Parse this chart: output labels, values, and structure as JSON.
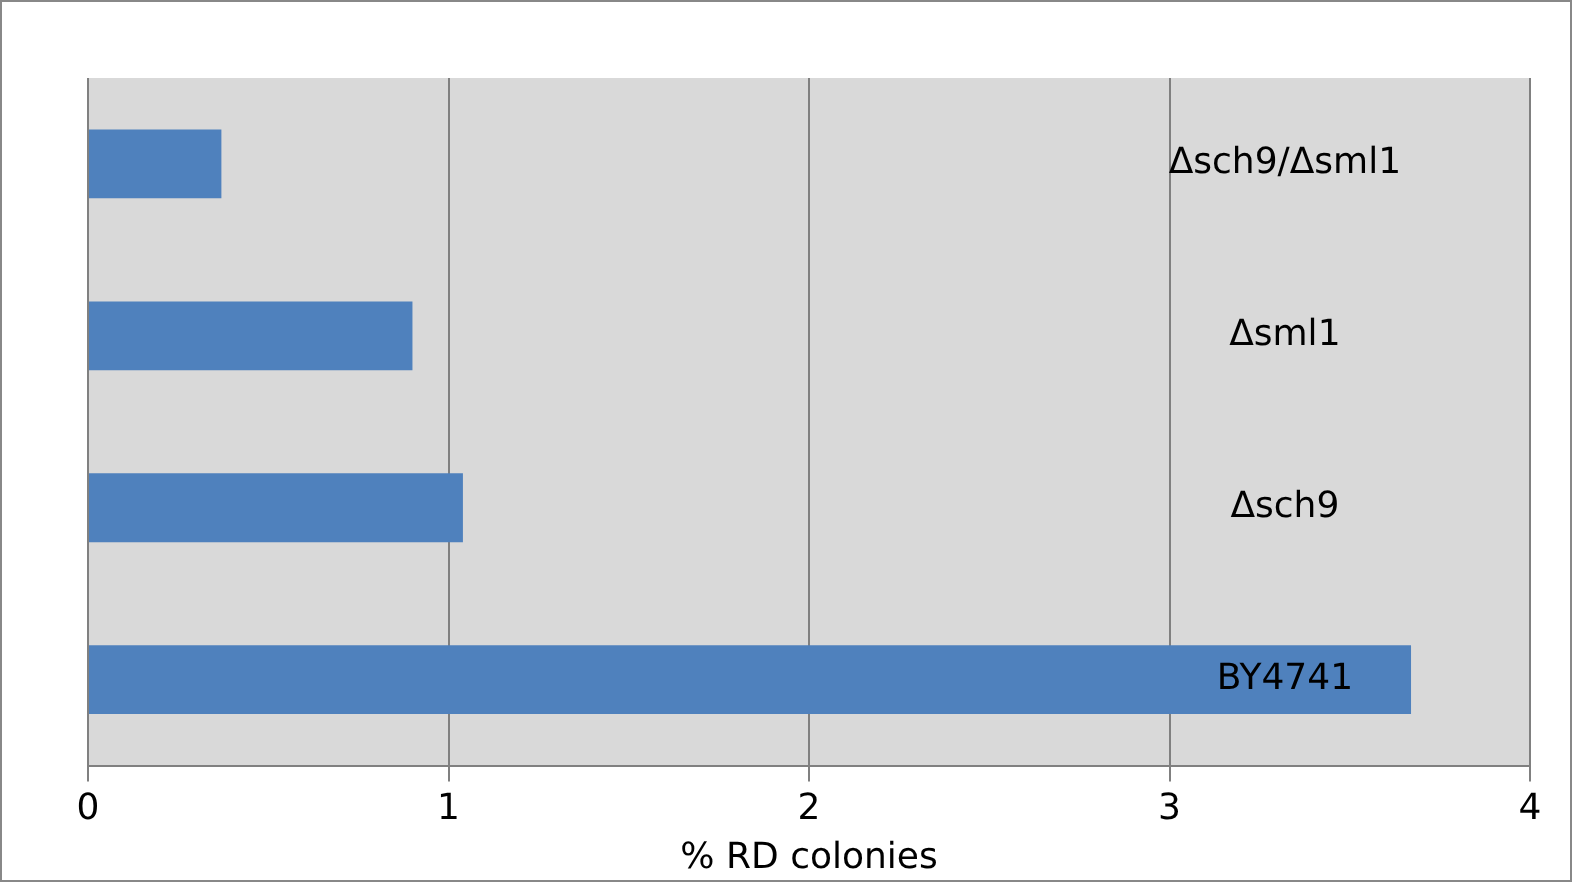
{
  "chart_data": {
    "type": "bar",
    "orientation": "horizontal",
    "xlabel": "% RD colonies",
    "categories": [
      "Δsch9/Δsml1",
      "Δsml1",
      "Δsch9",
      "BY4741"
    ],
    "values": [
      0.37,
      0.9,
      1.04,
      3.67
    ],
    "color": "#4f81bd",
    "xlim": [
      0,
      4
    ],
    "xticks": [
      0,
      1,
      2,
      3,
      4
    ],
    "grid": "x",
    "legend": false
  }
}
